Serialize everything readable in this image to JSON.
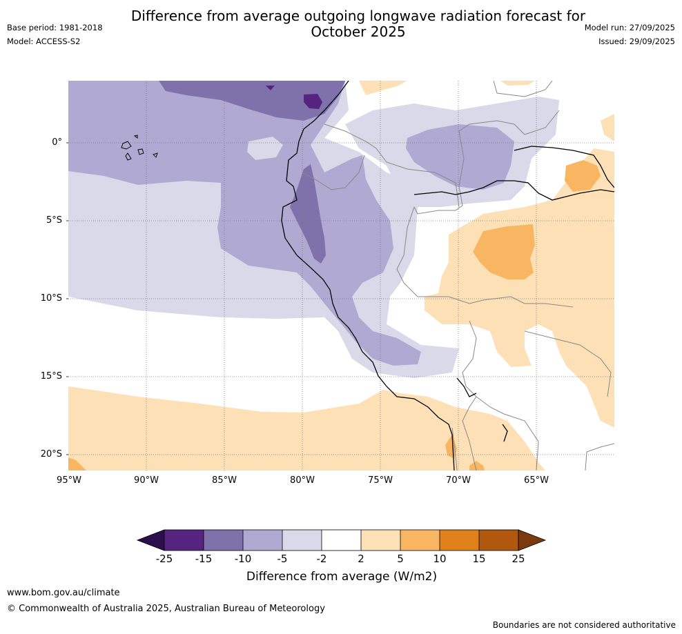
{
  "header": {
    "title_line1": "Difference from average outgoing longwave radiation forecast for",
    "title_line2": "October 2025",
    "base_period": "Base period: 1981-2018",
    "model": "Model: ACCESS-S2",
    "model_run": "Model run: 27/09/2025",
    "issued": "Issued: 29/09/2025"
  },
  "map": {
    "region": "Western South America",
    "lat_labels": [
      "0°",
      "5°S",
      "10°S",
      "15°S",
      "20°S"
    ],
    "lon_labels": [
      "95°W",
      "90°W",
      "85°W",
      "80°W",
      "75°W",
      "70°W",
      "65°W"
    ]
  },
  "colorbar": {
    "title": "Difference from average (W/m2)",
    "ticks": [
      "-25",
      "-15",
      "-10",
      "-5",
      "-2",
      "2",
      "5",
      "10",
      "15",
      "25"
    ],
    "colors": {
      "below_neg25": "#2b0e4c",
      "neg25_neg15": "#54247f",
      "neg15_neg10": "#7f72ab",
      "neg10_neg5": "#b0a9d1",
      "neg5_neg2": "#d9d9e9",
      "neg2_2": "#ffffff",
      "pos2_5": "#fde0b6",
      "pos5_10": "#f9b662",
      "pos10_15": "#e0811c",
      "pos15_25": "#b0580d",
      "above_25": "#7a3a0c"
    }
  },
  "footer": {
    "website": "www.bom.gov.au/climate",
    "copyright": "© Commonwealth of Australia 2025, Australian Bureau of Meteorology",
    "disclaimer": "Boundaries are not considered authoritative"
  }
}
